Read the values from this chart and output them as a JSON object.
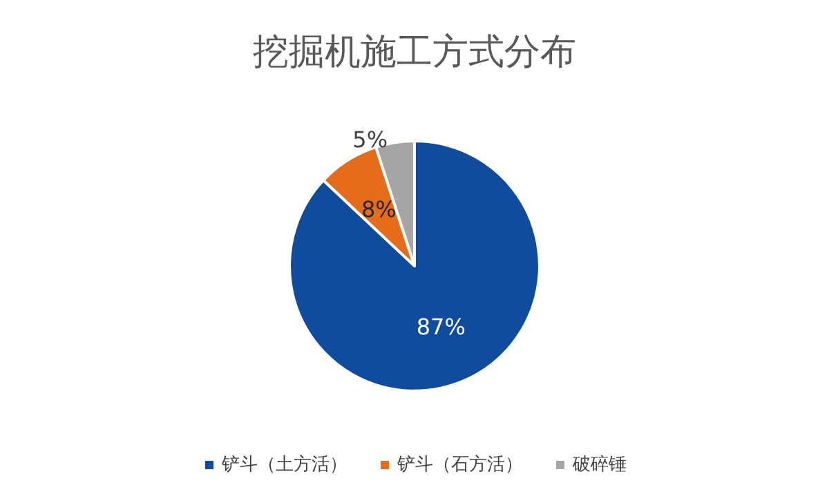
{
  "chart_data": {
    "type": "pie",
    "title": "挖掘机施工方式分布",
    "categories": [
      "铲斗（土方活）",
      "铲斗（石方活）",
      "破碎锤"
    ],
    "values": [
      87,
      8,
      5
    ],
    "colors": [
      "#0f4c9e",
      "#e46c1b",
      "#a5a5a5"
    ],
    "value_labels": [
      "87%",
      "8%",
      "5%"
    ],
    "legend": "bottom"
  }
}
